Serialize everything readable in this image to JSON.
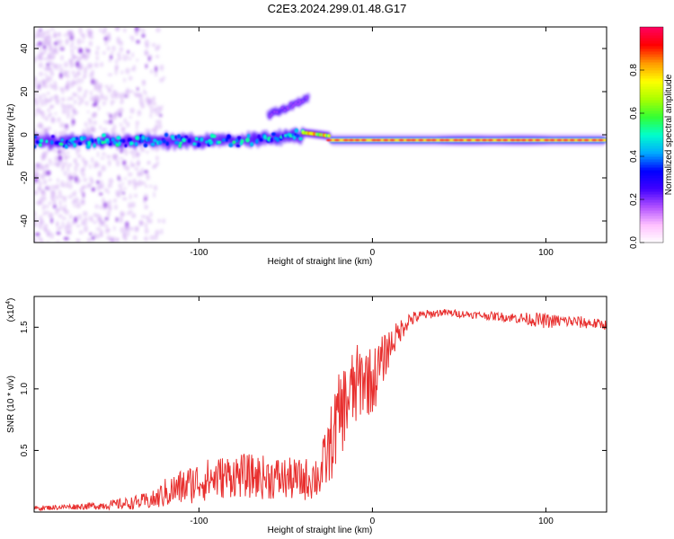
{
  "title": "C2E3.2024.299.01.48.G17",
  "chart_data": [
    {
      "type": "heatmap",
      "xlabel": "Height of straight line (km)",
      "ylabel": "Frequency (Hz)",
      "xlim": [
        -195,
        135
      ],
      "ylim": [
        -50,
        50
      ],
      "xticks": [
        -100,
        0,
        100
      ],
      "yticks": [
        -40,
        -20,
        0,
        20,
        40
      ],
      "colorbar": {
        "label": "Normalized spectral amplitude",
        "range": [
          0,
          1
        ],
        "ticks": [
          0.0,
          0.2,
          0.4,
          0.6,
          0.8
        ],
        "tick_labels": [
          "0.0",
          "0.2",
          "0.4",
          "0.6",
          "0.8"
        ],
        "colormap": [
          "#ffffff",
          "#ffc0ff",
          "#b050ff",
          "#4000ff",
          "#0000ff",
          "#00aaff",
          "#00ffcc",
          "#33ff33",
          "#aaff00",
          "#ffff00",
          "#ff9900",
          "#ff0000",
          "#ff0060"
        ]
      },
      "features": [
        {
          "x_range": [
            -195,
            -120
          ],
          "f_range": [
            -50,
            50
          ],
          "amplitude": 0.05
        },
        {
          "x_range": [
            -195,
            -40
          ],
          "center_f": -3,
          "halfwidth_f": 6,
          "amplitude": 0.45
        },
        {
          "x_range": [
            -60,
            -37
          ],
          "center_f": [
            9,
            17
          ],
          "amplitude": 0.3
        },
        {
          "x_range": [
            -40,
            -25
          ],
          "center_f": 1,
          "amplitude": 0.85
        },
        {
          "x_range": [
            -25,
            135
          ],
          "center_f": -2.5,
          "halfwidth_f": 2,
          "amplitude": 0.95
        }
      ]
    },
    {
      "type": "line",
      "xlabel": "Height of straight line (km)",
      "ylabel": "SNR (10 * v/v)",
      "multiplier_label": "(x10",
      "multiplier_exp": "4",
      "multiplier_close": ")",
      "xlim": [
        -195,
        135
      ],
      "ylim": [
        0,
        1.75
      ],
      "xticks": [
        -100,
        0,
        100
      ],
      "yticks": [
        0.5,
        1.0,
        1.5
      ],
      "ytick_labels": [
        "0.5",
        "1.0",
        "1.5"
      ],
      "color": "#e8302f",
      "series": [
        {
          "x": [
            -195,
            -180,
            -160,
            -140,
            -125,
            -120,
            -110,
            -100,
            -80,
            -60,
            -40,
            -30,
            -25,
            -20,
            -15,
            -10,
            -5,
            0,
            5,
            10,
            15,
            20,
            25,
            30,
            40,
            60,
            80,
            95,
            100,
            110,
            120,
            135
          ],
          "y": [
            0.03,
            0.04,
            0.05,
            0.07,
            0.1,
            0.15,
            0.2,
            0.25,
            0.3,
            0.28,
            0.26,
            0.3,
            0.5,
            0.75,
            0.9,
            1.0,
            1.1,
            1.05,
            1.2,
            1.35,
            1.45,
            1.55,
            1.58,
            1.6,
            1.62,
            1.6,
            1.58,
            1.56,
            1.55,
            1.55,
            1.54,
            1.52
          ],
          "noise": [
            0.02,
            0.02,
            0.03,
            0.05,
            0.08,
            0.12,
            0.15,
            0.17,
            0.18,
            0.18,
            0.17,
            0.2,
            0.3,
            0.35,
            0.35,
            0.35,
            0.3,
            0.28,
            0.22,
            0.15,
            0.1,
            0.08,
            0.05,
            0.04,
            0.03,
            0.03,
            0.04,
            0.06,
            0.06,
            0.05,
            0.05,
            0.04
          ]
        }
      ]
    }
  ]
}
